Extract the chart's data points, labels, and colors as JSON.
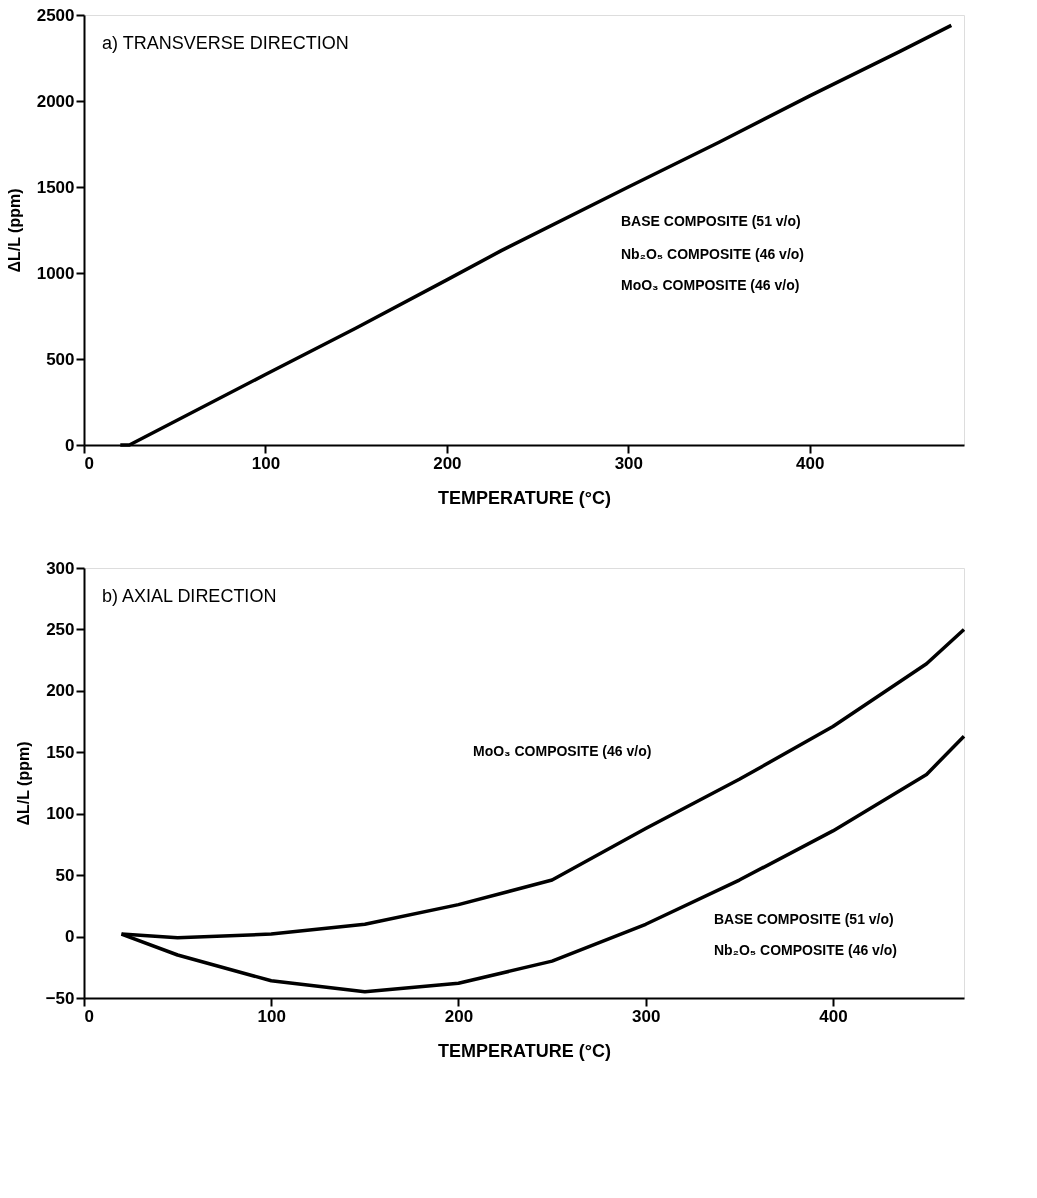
{
  "chart_data": [
    {
      "type": "line",
      "title": "a) TRANSVERSE DIRECTION",
      "xlabel": "TEMPERATURE (°C)",
      "ylabel": "ΔL/L (ppm)",
      "xlim": [
        0,
        485
      ],
      "xticks": [
        0,
        100,
        200,
        300,
        400
      ],
      "ylim": [
        0,
        2500
      ],
      "yticks": [
        0,
        500,
        1000,
        1500,
        2000,
        2500
      ],
      "grid": false,
      "series": [
        {
          "color": "#000000",
          "x": [
            20,
            25,
            100,
            150,
            200,
            230,
            300,
            350,
            400,
            450,
            478
          ],
          "values": [
            0,
            0,
            410,
            680,
            960,
            1130,
            1500,
            1760,
            2030,
            2290,
            2440
          ]
        }
      ],
      "annotations": [
        "BASE COMPOSITE (51 v/o)",
        "Nb₂O₅ COMPOSITE (46 v/o)",
        "MoO₃ COMPOSITE (46 v/o)"
      ]
    },
    {
      "type": "line",
      "title": "b) AXIAL DIRECTION",
      "xlabel": "TEMPERATURE (°C)",
      "ylabel": "ΔL/L (ppm)",
      "xlim": [
        0,
        470
      ],
      "xticks": [
        0,
        100,
        200,
        300,
        400
      ],
      "ylim": [
        -50,
        300
      ],
      "yticks": [
        -50,
        0,
        50,
        100,
        150,
        200,
        250,
        300
      ],
      "grid": false,
      "series": [
        {
          "color": "#000000",
          "x": [
            20,
            50,
            100,
            150,
            200,
            250,
            300,
            350,
            400,
            450,
            470
          ],
          "values": [
            2,
            -1,
            2,
            10,
            26,
            46,
            88,
            128,
            171,
            222,
            250
          ]
        },
        {
          "color": "#000000",
          "x": [
            20,
            50,
            100,
            150,
            200,
            250,
            300,
            350,
            400,
            450,
            470
          ],
          "values": [
            2,
            -15,
            -36,
            -45,
            -38,
            -20,
            10,
            46,
            86,
            132,
            163
          ]
        }
      ],
      "annotations": [
        "MoO₃ COMPOSITE (46 v/o)",
        "BASE COMPOSITE (51 v/o)",
        "Nb₂O₅ COMPOSITE (46 v/o)"
      ]
    }
  ]
}
